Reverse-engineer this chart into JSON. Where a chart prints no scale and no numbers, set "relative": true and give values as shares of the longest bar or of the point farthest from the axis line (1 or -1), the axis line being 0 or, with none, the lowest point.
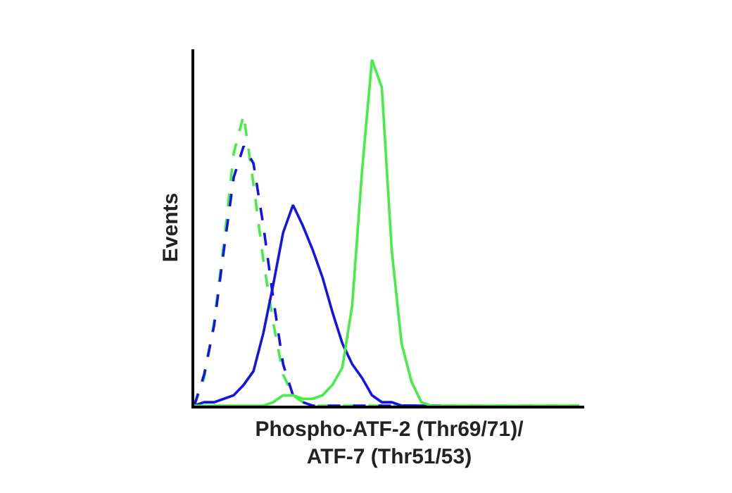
{
  "chart_data": {
    "type": "line",
    "relative": true,
    "xlabel": "Phospho-ATF-2 (Thr69/71)/\nATF-7 (Thr51/53)",
    "ylabel": "Events",
    "marker": "none",
    "categories": [
      null,
      null,
      null,
      null,
      null,
      null,
      null,
      null,
      null,
      null,
      null,
      null,
      null,
      null,
      null,
      null,
      null,
      null,
      null,
      null,
      null,
      null,
      null,
      null,
      null,
      null,
      null,
      null,
      null,
      null,
      null,
      null,
      null,
      null,
      null,
      null,
      null,
      null,
      null,
      null
    ],
    "series": [
      {
        "color": "#44ee44",
        "line_style": "dashed",
        "values": [
          0,
          0.08,
          0.24,
          0.47,
          0.73,
          0.84,
          0.64,
          0.42,
          0.24,
          0.09,
          0.03,
          0.01,
          0,
          0,
          0,
          0,
          0,
          0,
          0,
          0,
          0,
          0,
          0,
          0,
          0,
          0,
          0,
          0,
          0,
          0,
          0,
          0,
          0,
          0,
          0,
          0,
          0,
          0,
          0,
          0
        ]
      },
      {
        "color": "#1414e6",
        "line_style": "dashed",
        "values": [
          0,
          0.09,
          0.23,
          0.45,
          0.66,
          0.75,
          0.7,
          0.52,
          0.31,
          0.12,
          0.03,
          0.01,
          0,
          0,
          0,
          0,
          0,
          0,
          0,
          0,
          0,
          0,
          0,
          0,
          0,
          0,
          null,
          null,
          null,
          null,
          null,
          null,
          null,
          null,
          null,
          null,
          null,
          null,
          null,
          null
        ]
      },
      {
        "color": "#1414e6",
        "line_style": "solid",
        "values": [
          0,
          0.01,
          0.01,
          0.02,
          0.03,
          0.06,
          0.1,
          0.21,
          0.35,
          0.5,
          0.58,
          0.52,
          0.45,
          0.37,
          0.27,
          0.18,
          0.12,
          0.08,
          0.03,
          0.01,
          0.01,
          0,
          0,
          0,
          0,
          0,
          null,
          null,
          null,
          null,
          null,
          null,
          null,
          null,
          null,
          null,
          null,
          null,
          null,
          null
        ]
      },
      {
        "color": "#44ee44",
        "line_style": "solid",
        "values": [
          0,
          0,
          0,
          0,
          0,
          0,
          0,
          0,
          0.01,
          0.03,
          0.03,
          0.02,
          0.02,
          0.03,
          0.06,
          0.11,
          0.29,
          0.68,
          1,
          0.92,
          0.45,
          0.18,
          0.07,
          0.01,
          0,
          0,
          0,
          0,
          0,
          0,
          0,
          0,
          0,
          0,
          0,
          0,
          0,
          0,
          0,
          0
        ]
      }
    ]
  }
}
